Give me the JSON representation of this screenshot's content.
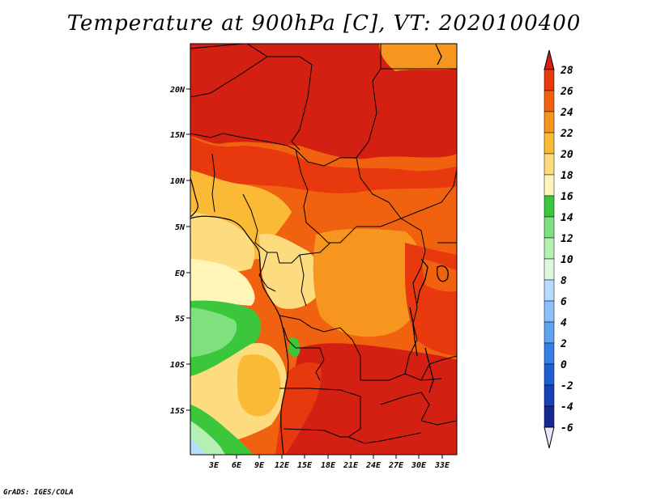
{
  "title": "Temperature at 900hPa [C], VT: 2020100400",
  "credit": "GrADS: IGES/COLA",
  "map": {
    "lat_labels": [
      "20N",
      "15N",
      "10N",
      "5N",
      "EQ",
      "5S",
      "10S",
      "15S"
    ],
    "lon_labels": [
      "3E",
      "6E",
      "9E",
      "12E",
      "15E",
      "18E",
      "21E",
      "24E",
      "27E",
      "30E",
      "33E"
    ]
  },
  "colorbar": {
    "labels": [
      "28",
      "26",
      "24",
      "22",
      "20",
      "18",
      "16",
      "14",
      "12",
      "10",
      "8",
      "6",
      "4",
      "2",
      "0",
      "-2",
      "-4",
      "-6"
    ],
    "colors": {
      "above_28": "#d41f13",
      "26_28": "#e8380d",
      "24_26": "#f06210",
      "22_24": "#f6961e",
      "20_22": "#fbba36",
      "18_20": "#fddc7f",
      "16_18": "#fff5b8",
      "14_16": "#3cc63c",
      "12_14": "#7ee07e",
      "10_12": "#b4f0b4",
      "8_10": "#dff7df",
      "6_8": "#b6dcff",
      "4_6": "#8ac1fa",
      "2_4": "#5fa2f0",
      "0_2": "#3580e6",
      "n2_0": "#1c60d3",
      "n4_n2": "#1741b4",
      "n6_n4": "#152a8e",
      "below_n6": "#10165e",
      "tail_low": "#e6e6ff"
    }
  }
}
